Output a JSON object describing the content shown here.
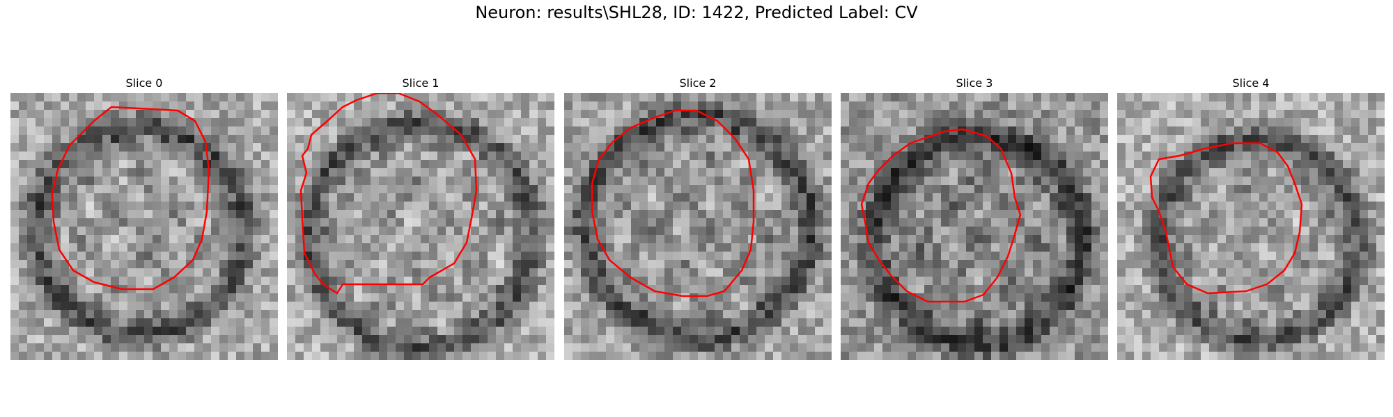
{
  "figure": {
    "title": "Neuron: results\\SHL28, ID: 1422, Predicted Label: CV"
  },
  "panels": [
    {
      "title": "Slice 0",
      "seed": 11
    },
    {
      "title": "Slice 1",
      "seed": 23
    },
    {
      "title": "Slice 2",
      "seed": 37
    },
    {
      "title": "Slice 3",
      "seed": 41
    },
    {
      "title": "Slice 4",
      "seed": 59
    }
  ],
  "colors": {
    "contour": "#ff0000"
  }
}
